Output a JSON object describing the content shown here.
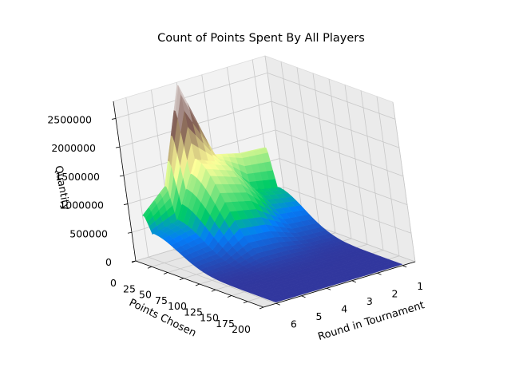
{
  "chart_data": {
    "type": "surface3d",
    "title": "Count of Points Spent By All Players",
    "xlabel": "Points Chosen",
    "ylabel": "Round in Tournament",
    "zlabel": "Quantity",
    "x_ticks": [
      "0",
      "25",
      "50",
      "75",
      "100",
      "125",
      "150",
      "175",
      "200"
    ],
    "y_ticks": [
      "1",
      "2",
      "3",
      "4",
      "5",
      "6"
    ],
    "z_ticks": [
      "0",
      "500000",
      "1000000",
      "1500000",
      "2000000",
      "2500000"
    ],
    "xlim": [
      0,
      200
    ],
    "ylim": [
      0.5,
      6.5
    ],
    "zlim": [
      0,
      2800000
    ],
    "colormap": "terrain",
    "peaks": [
      {
        "points": 0,
        "round": 1,
        "value": 1260000
      },
      {
        "points": 0,
        "round": 2,
        "value": 1290000
      },
      {
        "points": 0,
        "round": 3,
        "value": 1400000
      },
      {
        "points": 0,
        "round": 4,
        "value": 2750000
      },
      {
        "points": 0,
        "round": 5,
        "value": 1110000
      },
      {
        "points": 0,
        "round": 6,
        "value": 730000
      }
    ],
    "secondary_peaks": [
      {
        "points": 12,
        "round": 1,
        "value": 600000
      },
      {
        "points": 12,
        "round": 2,
        "value": 700000
      },
      {
        "points": 12,
        "round": 3,
        "value": 1320000
      },
      {
        "points": 12,
        "round": 4,
        "value": 1500000
      },
      {
        "points": 12,
        "round": 5,
        "value": 560000
      },
      {
        "points": 12,
        "round": 6,
        "value": 450000
      }
    ]
  }
}
